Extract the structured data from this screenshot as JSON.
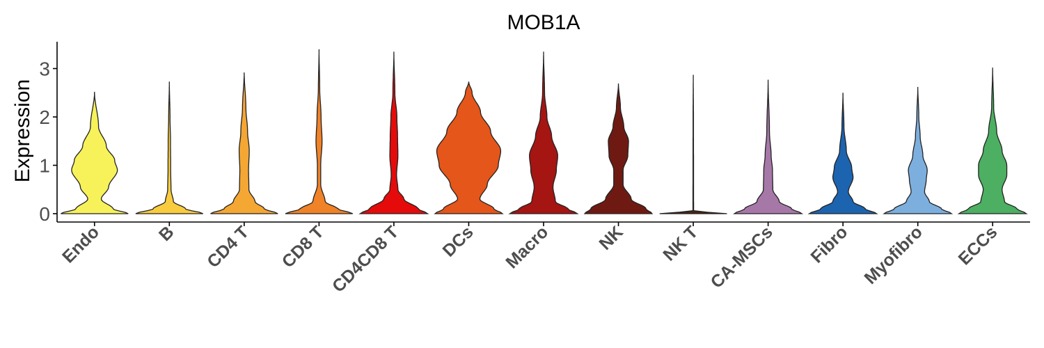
{
  "chart_data": {
    "type": "violin",
    "title": "MOB1A",
    "ylabel": "Expression",
    "xlabel": "",
    "ylim": [
      -0.15,
      3.55
    ],
    "yticks": [
      0,
      1,
      2,
      3
    ],
    "grid": false,
    "legend": "none",
    "categories": [
      "Endo",
      "B",
      "CD4 T",
      "CD8 T",
      "CD4CD8 T",
      "DCs",
      "Macro",
      "NK",
      "NK T",
      "CA-MSCs",
      "Fibro",
      "Myofibro",
      "ECCs"
    ],
    "series": [
      {
        "category": "Endo",
        "color": "#F7F25A",
        "max": 2.52,
        "profile": [
          [
            0,
            1.0
          ],
          [
            0.1,
            0.55
          ],
          [
            0.3,
            0.2
          ],
          [
            0.55,
            0.42
          ],
          [
            0.9,
            0.68
          ],
          [
            1.1,
            0.6
          ],
          [
            1.4,
            0.35
          ],
          [
            1.8,
            0.12
          ],
          [
            2.52,
            0
          ]
        ]
      },
      {
        "category": "B",
        "color": "#F9CC3F",
        "max": 2.73,
        "profile": [
          [
            0,
            1.0
          ],
          [
            0.1,
            0.48
          ],
          [
            0.25,
            0.12
          ],
          [
            0.5,
            0.05
          ],
          [
            0.9,
            0.04
          ],
          [
            1.5,
            0.035
          ],
          [
            2.0,
            0.02
          ],
          [
            2.73,
            0
          ]
        ]
      },
      {
        "category": "CD4 T",
        "color": "#F5A734",
        "max": 2.92,
        "profile": [
          [
            0,
            1.0
          ],
          [
            0.1,
            0.6
          ],
          [
            0.25,
            0.32
          ],
          [
            0.5,
            0.14
          ],
          [
            0.9,
            0.13
          ],
          [
            1.3,
            0.15
          ],
          [
            1.7,
            0.1
          ],
          [
            2.2,
            0.05
          ],
          [
            2.92,
            0
          ]
        ]
      },
      {
        "category": "CD8 T",
        "color": "#F08227",
        "max": 3.4,
        "profile": [
          [
            0,
            1.0
          ],
          [
            0.1,
            0.55
          ],
          [
            0.25,
            0.18
          ],
          [
            0.6,
            0.05
          ],
          [
            1.0,
            0.05
          ],
          [
            1.5,
            0.09
          ],
          [
            2.0,
            0.06
          ],
          [
            2.6,
            0.02
          ],
          [
            3.4,
            0
          ]
        ]
      },
      {
        "category": "CD4CD8 T",
        "color": "#E50B0B",
        "max": 3.35,
        "profile": [
          [
            0,
            1.0
          ],
          [
            0.1,
            0.72
          ],
          [
            0.3,
            0.3
          ],
          [
            0.5,
            0.12
          ],
          [
            0.8,
            0.08
          ],
          [
            1.2,
            0.12
          ],
          [
            1.6,
            0.11
          ],
          [
            2.0,
            0.09
          ],
          [
            2.5,
            0.03
          ],
          [
            3.35,
            0
          ]
        ]
      },
      {
        "category": "DCs",
        "color": "#E5561A",
        "max": 2.73,
        "profile": [
          [
            0,
            1.0
          ],
          [
            0.1,
            0.75
          ],
          [
            0.3,
            0.33
          ],
          [
            0.6,
            0.55
          ],
          [
            1.0,
            0.88
          ],
          [
            1.3,
            0.95
          ],
          [
            1.7,
            0.65
          ],
          [
            2.1,
            0.35
          ],
          [
            2.5,
            0.1
          ],
          [
            2.73,
            0
          ]
        ]
      },
      {
        "category": "Macro",
        "color": "#A51512",
        "max": 3.35,
        "profile": [
          [
            0,
            1.0
          ],
          [
            0.1,
            0.72
          ],
          [
            0.25,
            0.35
          ],
          [
            0.55,
            0.28
          ],
          [
            0.9,
            0.38
          ],
          [
            1.2,
            0.42
          ],
          [
            1.6,
            0.24
          ],
          [
            2.0,
            0.1
          ],
          [
            2.5,
            0.03
          ],
          [
            3.35,
            0
          ]
        ]
      },
      {
        "category": "NK",
        "color": "#6E1A12",
        "max": 2.69,
        "profile": [
          [
            0,
            1.0
          ],
          [
            0.1,
            0.82
          ],
          [
            0.3,
            0.38
          ],
          [
            0.6,
            0.14
          ],
          [
            0.9,
            0.14
          ],
          [
            1.2,
            0.28
          ],
          [
            1.5,
            0.3
          ],
          [
            1.8,
            0.16
          ],
          [
            2.2,
            0.06
          ],
          [
            2.69,
            0
          ]
        ]
      },
      {
        "category": "NK T",
        "color": "#4A2413",
        "max": 2.87,
        "profile": [
          [
            0,
            1.0
          ],
          [
            0.02,
            0.6
          ],
          [
            0.05,
            0.01
          ],
          [
            1.0,
            0.008
          ],
          [
            2.0,
            0.006
          ],
          [
            2.87,
            0
          ]
        ]
      },
      {
        "category": "CA-MSCs",
        "color": "#A678A8",
        "max": 2.77,
        "profile": [
          [
            0,
            1.0
          ],
          [
            0.1,
            0.7
          ],
          [
            0.25,
            0.33
          ],
          [
            0.5,
            0.14
          ],
          [
            0.9,
            0.13
          ],
          [
            1.2,
            0.09
          ],
          [
            1.7,
            0.04
          ],
          [
            2.77,
            0
          ]
        ]
      },
      {
        "category": "Fibro",
        "color": "#1C64B0",
        "max": 2.5,
        "profile": [
          [
            0,
            1.0
          ],
          [
            0.1,
            0.66
          ],
          [
            0.25,
            0.3
          ],
          [
            0.45,
            0.16
          ],
          [
            0.75,
            0.3
          ],
          [
            0.95,
            0.26
          ],
          [
            1.3,
            0.1
          ],
          [
            1.8,
            0.03
          ],
          [
            2.5,
            0
          ]
        ]
      },
      {
        "category": "Myofibro",
        "color": "#7CAFDE",
        "max": 2.62,
        "profile": [
          [
            0,
            1.0
          ],
          [
            0.1,
            0.7
          ],
          [
            0.25,
            0.34
          ],
          [
            0.45,
            0.2
          ],
          [
            0.7,
            0.25
          ],
          [
            0.9,
            0.28
          ],
          [
            1.2,
            0.15
          ],
          [
            1.6,
            0.07
          ],
          [
            2.0,
            0.03
          ],
          [
            2.62,
            0
          ]
        ]
      },
      {
        "category": "ECCs",
        "color": "#4CAF62",
        "max": 3.02,
        "profile": [
          [
            0,
            1.0
          ],
          [
            0.1,
            0.72
          ],
          [
            0.25,
            0.35
          ],
          [
            0.5,
            0.28
          ],
          [
            0.8,
            0.42
          ],
          [
            1.0,
            0.42
          ],
          [
            1.3,
            0.28
          ],
          [
            1.7,
            0.12
          ],
          [
            2.2,
            0.03
          ],
          [
            3.02,
            0
          ]
        ]
      }
    ]
  }
}
